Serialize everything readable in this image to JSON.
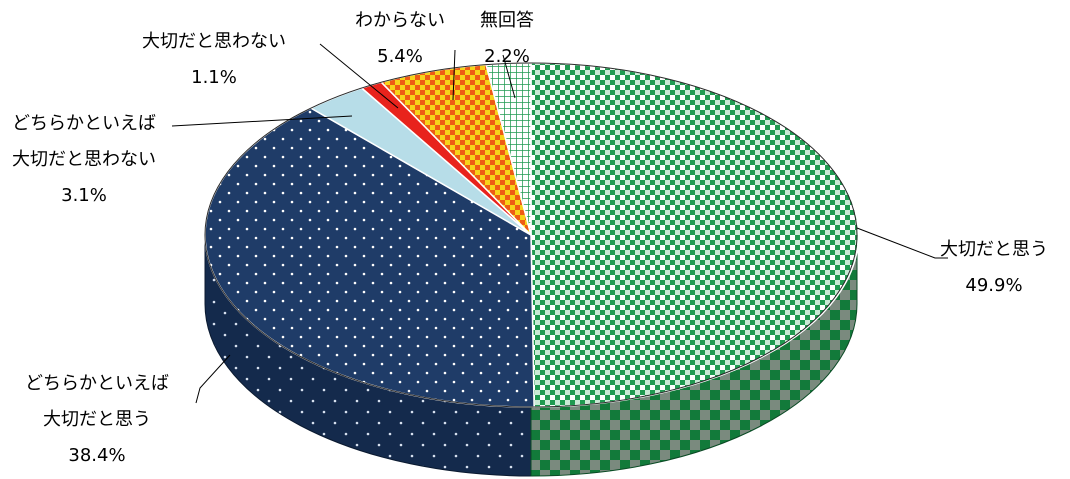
{
  "chart_data": {
    "type": "pie",
    "style": "3d-tilted",
    "slices": [
      {
        "label": "大切だと思う",
        "value": 49.9,
        "value_label": "49.9%",
        "color": "#1f9a50",
        "pattern": "green-checker"
      },
      {
        "label_lines": [
          "どちらかといえば",
          "大切だと思う"
        ],
        "value": 38.4,
        "value_label": "38.4%",
        "color": "#1f3c68",
        "pattern": "navy-dots"
      },
      {
        "label_lines": [
          "どちらかといえば",
          "大切だと思わない"
        ],
        "value": 3.1,
        "value_label": "3.1%",
        "color": "#b7dde8",
        "pattern": "solid"
      },
      {
        "label": "大切だと思わない",
        "value": 1.1,
        "value_label": "1.1%",
        "color": "#e8231c",
        "pattern": "solid"
      },
      {
        "label": "わからない",
        "value": 5.4,
        "value_label": "5.4%",
        "color": "#f07818",
        "pattern": "orange-yellow-checker"
      },
      {
        "label": "無回答",
        "value": 2.2,
        "value_label": "2.2%",
        "color": "#1f9a50",
        "pattern": "green-grid"
      }
    ],
    "slice_order_from_top_clockwise": [
      "大切だと思う",
      "どちらかといえば大切だと思う",
      "どちらかといえば大切だと思わない",
      "大切だと思わない",
      "わからない",
      "無回答"
    ]
  }
}
